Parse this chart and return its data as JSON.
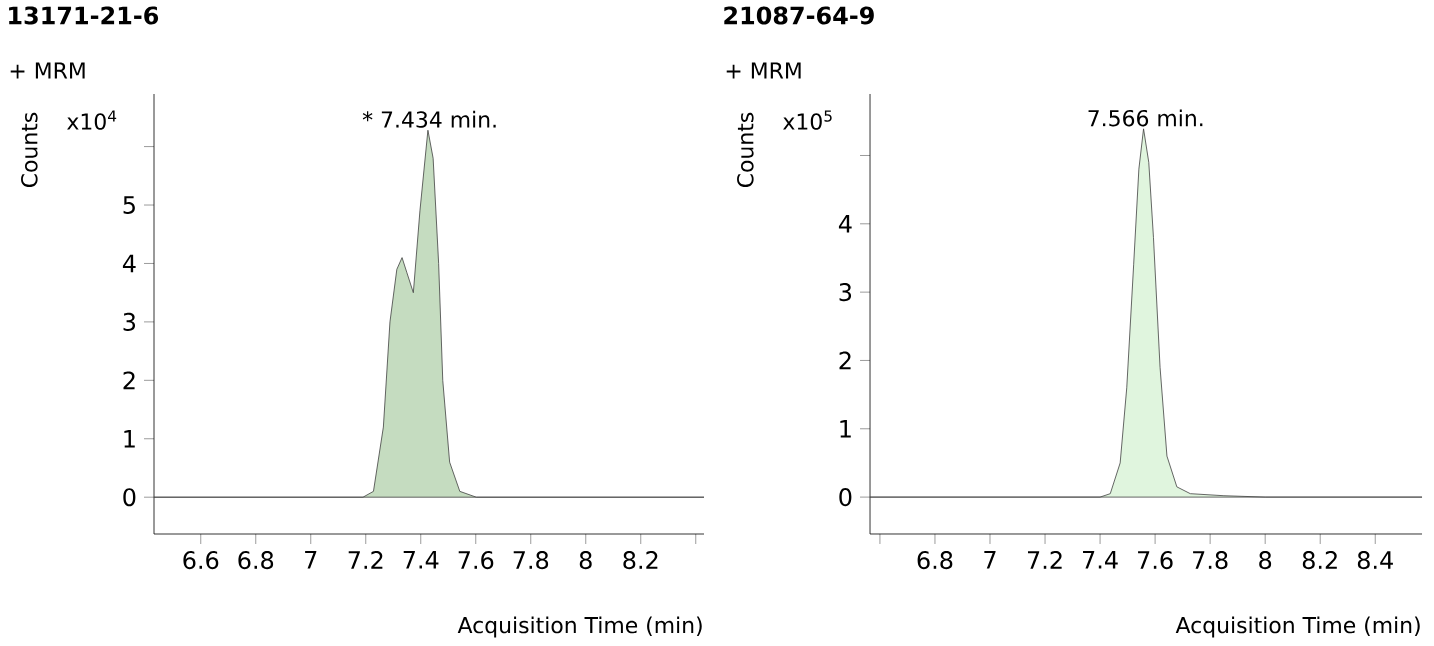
{
  "chart_data": [
    {
      "type": "area",
      "title": "13171-21-6",
      "subtitle": "+ MRM",
      "xlabel": "Acquisition Time (min)",
      "ylabel": "Counts",
      "annotations": [
        "x10$^{4}$",
        {
          "text": "* 7.434 min.",
          "x": 7.434,
          "y": 6.28
        }
      ],
      "xlim": [
        6.43,
        8.43
      ],
      "ylim": [
        -0.63,
        6.9
      ],
      "xticks": [
        6.6,
        6.8,
        7,
        7.2,
        7.4,
        7.6,
        7.8,
        8,
        8.2,
        {
          "value": 8.4,
          "label": null
        }
      ],
      "yticks": [
        0,
        1,
        2,
        3,
        4,
        5,
        {
          "value": 6,
          "label": null
        }
      ],
      "series": [
        {
          "color": "#c5dcc0",
          "x": [
            6.43,
            7.19,
            7.228,
            7.264,
            7.288,
            7.313,
            7.332,
            7.349,
            7.373,
            7.397,
            7.426,
            7.445,
            7.465,
            7.48,
            7.505,
            7.542,
            7.602,
            8.43
          ],
          "values": [
            0,
            0,
            0.1,
            1.2,
            3.0,
            3.9,
            4.1,
            3.85,
            3.5,
            4.9,
            6.28,
            5.8,
            4.0,
            2.0,
            0.6,
            0.1,
            0,
            0
          ]
        }
      ]
    },
    {
      "type": "area",
      "title": "21087-64-9",
      "subtitle": "+ MRM",
      "xlabel": "Acquisition Time (min)",
      "ylabel": "Counts",
      "annotations": [
        "x10$^{5}$",
        {
          "text": "7.566 min.",
          "x": 7.566,
          "y": 5.39
        }
      ],
      "xlim": [
        6.564,
        8.57
      ],
      "ylim": [
        -0.54,
        5.9
      ],
      "xticks": [
        {
          "value": 6.6,
          "label": null
        },
        6.8,
        7,
        7.2,
        7.4,
        7.6,
        7.8,
        8,
        8.2,
        8.4
      ],
      "yticks": [
        0,
        1,
        2,
        3,
        4,
        {
          "value": 5,
          "label": null
        }
      ],
      "series": [
        {
          "color": "#e0f5de",
          "x": [
            6.564,
            7.4,
            7.437,
            7.473,
            7.497,
            7.522,
            7.541,
            7.558,
            7.577,
            7.594,
            7.618,
            7.643,
            7.679,
            7.728,
            7.85,
            8.0,
            8.57
          ],
          "values": [
            0,
            0,
            0.05,
            0.5,
            1.6,
            3.4,
            4.8,
            5.39,
            4.9,
            3.8,
            1.9,
            0.6,
            0.15,
            0.05,
            0.02,
            0,
            0
          ]
        }
      ]
    }
  ]
}
